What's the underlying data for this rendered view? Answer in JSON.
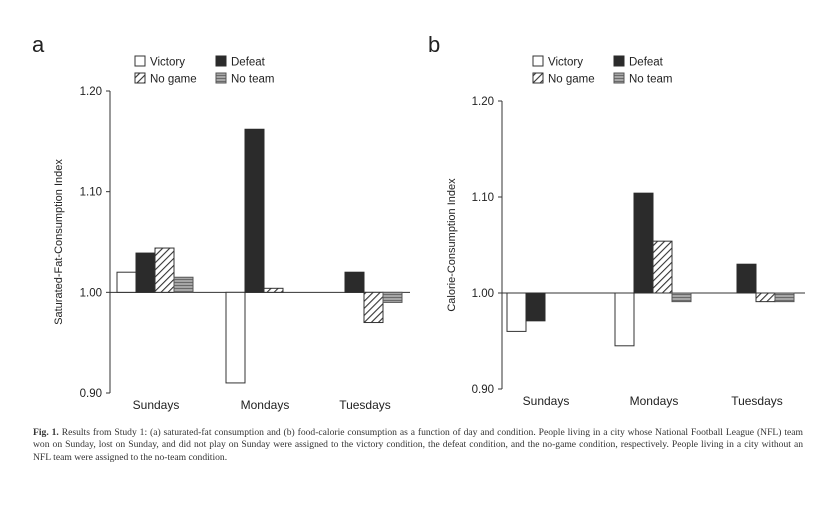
{
  "legend": {
    "victory": "Victory",
    "defeat": "Defeat",
    "no_game": "No game",
    "no_team": "No team"
  },
  "caption": {
    "label": "Fig. 1.",
    "text": "Results from Study 1: (a) saturated-fat consumption and (b) food-calorie consumption as a function of day and condition. People living in a city whose National Football League (NFL) team won on Sunday, lost on Sunday, and did not play on Sunday were assigned to the victory condition, the defeat condition, and the no-game condition, respectively. People living in a city without an NFL team were assigned to the no-team condition."
  },
  "colors": {
    "victory": "#ffffff",
    "defeat": "#2b2b2b",
    "no_game": "hatched",
    "no_team": "#9a9a9a"
  },
  "chart_data": [
    {
      "panel": "a",
      "type": "bar",
      "ylabel": "Saturated-Fat-Consumption Index",
      "xlabel": "",
      "ylim": [
        0.9,
        1.2
      ],
      "baseline": 1.0,
      "yticks": [
        "0.90",
        "1.00",
        "1.10",
        "1.20"
      ],
      "categories": [
        "Sundays",
        "Mondays",
        "Tuesdays"
      ],
      "series": [
        {
          "name": "Victory",
          "values": [
            1.02,
            0.91,
            null
          ]
        },
        {
          "name": "Defeat",
          "values": [
            1.039,
            1.162,
            1.02
          ]
        },
        {
          "name": "No game",
          "values": [
            1.044,
            1.004,
            0.97
          ]
        },
        {
          "name": "No team",
          "values": [
            1.015,
            null,
            0.99
          ]
        }
      ]
    },
    {
      "panel": "b",
      "type": "bar",
      "ylabel": "Calorie-Consumption Index",
      "xlabel": "",
      "ylim": [
        0.9,
        1.2
      ],
      "baseline": 1.0,
      "yticks": [
        "0.90",
        "1.00",
        "1.10",
        "1.20"
      ],
      "categories": [
        "Sundays",
        "Mondays",
        "Tuesdays"
      ],
      "series": [
        {
          "name": "Victory",
          "values": [
            0.96,
            0.945,
            null
          ]
        },
        {
          "name": "Defeat",
          "values": [
            0.971,
            1.104,
            1.03
          ]
        },
        {
          "name": "No game",
          "values": [
            null,
            1.054,
            0.991
          ]
        },
        {
          "name": "No team",
          "values": [
            null,
            0.991,
            0.991
          ]
        }
      ]
    }
  ]
}
